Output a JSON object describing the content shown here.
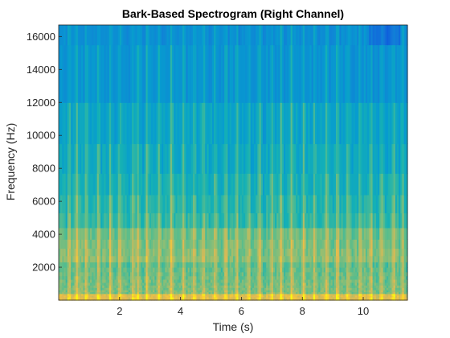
{
  "chart_data": {
    "type": "heatmap",
    "title": "Bark-Based Spectrogram (Right Channel)",
    "xlabel": "Time (s)",
    "ylabel": "Frequency (Hz)",
    "xlim": [
      0,
      11.45
    ],
    "ylim": [
      0,
      16700
    ],
    "xticks": [
      2,
      4,
      6,
      8,
      10
    ],
    "yticks": [
      2000,
      4000,
      6000,
      8000,
      10000,
      12000,
      14000,
      16000
    ],
    "colormap": "parula",
    "grid": false,
    "frequency_band_edges_hz": [
      0,
      100,
      200,
      300,
      400,
      510,
      630,
      770,
      920,
      1080,
      1270,
      1480,
      1720,
      2000,
      2320,
      2700,
      3150,
      3700,
      4400,
      5300,
      6400,
      7700,
      9500,
      12000,
      15500,
      16700
    ],
    "onset_times_s": [
      0.35,
      0.6,
      0.9,
      1.3,
      1.7,
      2.0,
      2.45,
      2.6,
      2.9,
      3.3,
      3.7,
      4.1,
      4.45,
      4.75,
      5.15,
      5.5,
      5.85,
      6.25,
      6.6,
      7.0,
      7.3,
      7.65,
      8.05,
      8.4,
      8.8,
      9.15,
      9.5,
      9.9,
      10.25,
      10.6,
      11.0,
      11.3
    ]
  }
}
